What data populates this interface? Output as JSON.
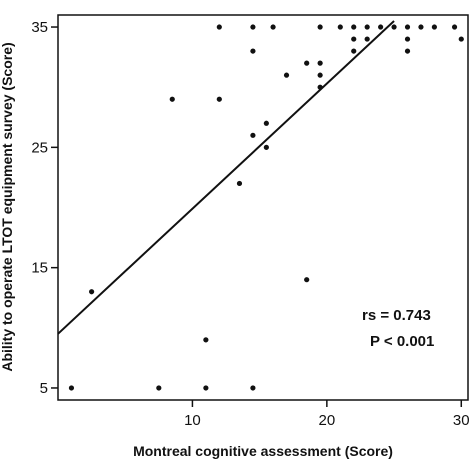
{
  "chart_data": {
    "type": "scatter",
    "title": "",
    "xlabel": "Montreal cognitive assessment (Score)",
    "ylabel": "Ability to operate LTOT equipment survey (Score)",
    "xlim": [
      0,
      30.5
    ],
    "ylim": [
      4,
      36
    ],
    "x_ticks": [
      10,
      20,
      30
    ],
    "x_tick_labels": [
      "10",
      "20",
      "30"
    ],
    "y_ticks": [
      5,
      15,
      25,
      35
    ],
    "y_tick_labels": [
      "5",
      "15",
      "25",
      "35"
    ],
    "grid": false,
    "legend": "none",
    "points": [
      {
        "x": 1,
        "y": 5
      },
      {
        "x": 7.5,
        "y": 5
      },
      {
        "x": 11,
        "y": 5
      },
      {
        "x": 14.5,
        "y": 5
      },
      {
        "x": 2.5,
        "y": 13
      },
      {
        "x": 11,
        "y": 9
      },
      {
        "x": 18.5,
        "y": 14
      },
      {
        "x": 13.5,
        "y": 22
      },
      {
        "x": 8.5,
        "y": 29
      },
      {
        "x": 12,
        "y": 29
      },
      {
        "x": 14.5,
        "y": 26
      },
      {
        "x": 15.5,
        "y": 25
      },
      {
        "x": 15.5,
        "y": 27
      },
      {
        "x": 14.5,
        "y": 33
      },
      {
        "x": 17,
        "y": 31
      },
      {
        "x": 18.5,
        "y": 32
      },
      {
        "x": 19.5,
        "y": 32
      },
      {
        "x": 19.5,
        "y": 31
      },
      {
        "x": 19.5,
        "y": 30
      },
      {
        "x": 12,
        "y": 35
      },
      {
        "x": 14.5,
        "y": 35
      },
      {
        "x": 16,
        "y": 35
      },
      {
        "x": 19.5,
        "y": 35
      },
      {
        "x": 21,
        "y": 35
      },
      {
        "x": 22,
        "y": 35
      },
      {
        "x": 23,
        "y": 35
      },
      {
        "x": 24,
        "y": 35
      },
      {
        "x": 25,
        "y": 35
      },
      {
        "x": 26,
        "y": 35
      },
      {
        "x": 27,
        "y": 35
      },
      {
        "x": 28,
        "y": 35
      },
      {
        "x": 29.5,
        "y": 35
      },
      {
        "x": 22,
        "y": 34
      },
      {
        "x": 23,
        "y": 34
      },
      {
        "x": 26,
        "y": 34
      },
      {
        "x": 30,
        "y": 34
      },
      {
        "x": 22,
        "y": 33
      },
      {
        "x": 26,
        "y": 33
      }
    ],
    "fit_line": {
      "x": [
        0,
        25
      ],
      "y": [
        9.5,
        35.5
      ]
    },
    "annotations": [
      "rs = 0.743",
      "P < 0.001"
    ],
    "colors": {
      "points": "#111111",
      "line": "#111111",
      "axes": "#111111"
    }
  }
}
